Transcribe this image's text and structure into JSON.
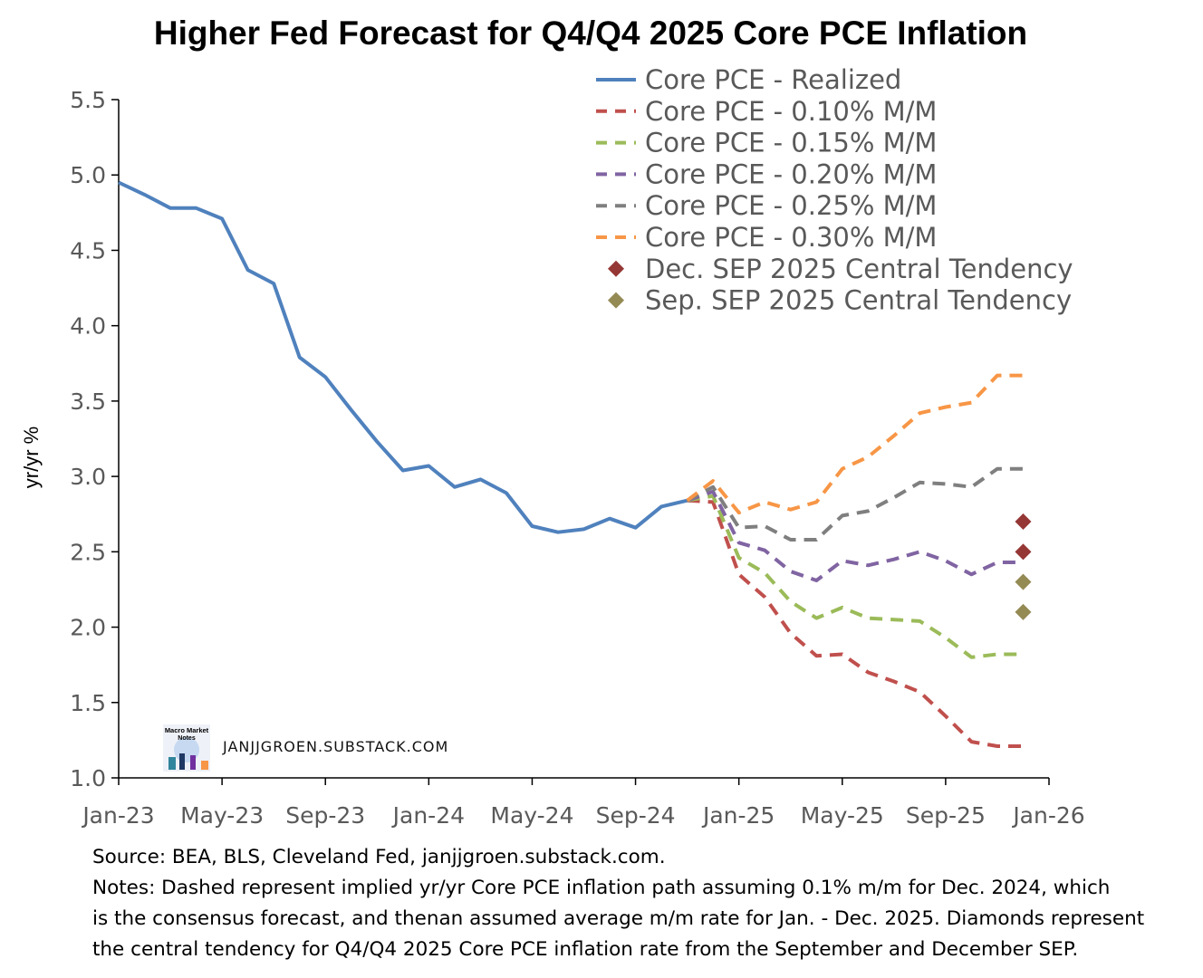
{
  "chart_data": {
    "type": "line",
    "title": "Higher Fed Forecast for Q4/Q4 2025 Core PCE Inflation",
    "ylabel": "yr/yr %",
    "xlabel": "",
    "ylim": [
      1.0,
      5.5
    ],
    "yticks": [
      "1.0",
      "1.5",
      "2.0",
      "2.5",
      "3.0",
      "3.5",
      "4.0",
      "4.5",
      "5.0",
      "5.5"
    ],
    "xticks": [
      "Jan-23",
      "May-23",
      "Sep-23",
      "Jan-24",
      "May-24",
      "Sep-24",
      "Jan-25",
      "May-25",
      "Sep-25",
      "Jan-26"
    ],
    "xrange": [
      "2023-01",
      "2026-01"
    ],
    "legend_position": "top-right",
    "grid": false,
    "series": [
      {
        "name": "Core PCE - Realized",
        "style": "solid",
        "color": "#4f81bd",
        "x": [
          "2023-01",
          "2023-02",
          "2023-03",
          "2023-04",
          "2023-05",
          "2023-06",
          "2023-07",
          "2023-08",
          "2023-09",
          "2023-10",
          "2023-11",
          "2023-12",
          "2024-01",
          "2024-02",
          "2024-03",
          "2024-04",
          "2024-05",
          "2024-06",
          "2024-07",
          "2024-08",
          "2024-09",
          "2024-10",
          "2024-11"
        ],
        "values": [
          4.95,
          4.87,
          4.78,
          4.78,
          4.71,
          4.37,
          4.28,
          3.79,
          3.66,
          3.44,
          3.23,
          3.04,
          3.07,
          2.93,
          2.98,
          2.89,
          2.67,
          2.63,
          2.65,
          2.72,
          2.66,
          2.8,
          2.84
        ]
      },
      {
        "name": "Core PCE - 0.10% M/M",
        "style": "dashed",
        "color": "#c0504d",
        "x": [
          "2024-11",
          "2024-12",
          "2025-01",
          "2025-02",
          "2025-03",
          "2025-04",
          "2025-05",
          "2025-06",
          "2025-07",
          "2025-08",
          "2025-09",
          "2025-10",
          "2025-11",
          "2025-12"
        ],
        "values": [
          2.84,
          2.83,
          2.35,
          2.2,
          1.96,
          1.81,
          1.82,
          1.7,
          1.64,
          1.57,
          1.41,
          1.24,
          1.21,
          1.21
        ]
      },
      {
        "name": "Core PCE - 0.15% M/M",
        "style": "dashed",
        "color": "#9bbb59",
        "x": [
          "2024-11",
          "2024-12",
          "2025-01",
          "2025-02",
          "2025-03",
          "2025-04",
          "2025-05",
          "2025-06",
          "2025-07",
          "2025-08",
          "2025-09",
          "2025-10",
          "2025-11",
          "2025-12"
        ],
        "values": [
          2.84,
          2.87,
          2.46,
          2.36,
          2.17,
          2.06,
          2.13,
          2.06,
          2.05,
          2.04,
          1.93,
          1.8,
          1.82,
          1.82
        ]
      },
      {
        "name": "Core PCE - 0.20% M/M",
        "style": "dashed",
        "color": "#8064a2",
        "x": [
          "2024-11",
          "2024-12",
          "2025-01",
          "2025-02",
          "2025-03",
          "2025-04",
          "2025-05",
          "2025-06",
          "2025-07",
          "2025-08",
          "2025-09",
          "2025-10",
          "2025-11",
          "2025-12"
        ],
        "values": [
          2.84,
          2.9,
          2.56,
          2.51,
          2.37,
          2.31,
          2.44,
          2.41,
          2.45,
          2.5,
          2.44,
          2.35,
          2.43,
          2.43
        ]
      },
      {
        "name": "Core PCE - 0.25% M/M",
        "style": "dashed",
        "color": "#7f7f7f",
        "x": [
          "2024-11",
          "2024-12",
          "2025-01",
          "2025-02",
          "2025-03",
          "2025-04",
          "2025-05",
          "2025-06",
          "2025-07",
          "2025-08",
          "2025-09",
          "2025-10",
          "2025-11",
          "2025-12"
        ],
        "values": [
          2.84,
          2.93,
          2.66,
          2.67,
          2.58,
          2.58,
          2.74,
          2.77,
          2.86,
          2.96,
          2.95,
          2.93,
          3.05,
          3.05
        ]
      },
      {
        "name": "Core PCE - 0.30% M/M",
        "style": "dashed",
        "color": "#f79646",
        "x": [
          "2024-11",
          "2024-12",
          "2025-01",
          "2025-02",
          "2025-03",
          "2025-04",
          "2025-05",
          "2025-06",
          "2025-07",
          "2025-08",
          "2025-09",
          "2025-10",
          "2025-11",
          "2025-12"
        ],
        "values": [
          2.84,
          2.97,
          2.76,
          2.83,
          2.78,
          2.83,
          3.05,
          3.13,
          3.27,
          3.42,
          3.46,
          3.49,
          3.67,
          3.67
        ]
      }
    ],
    "markers": [
      {
        "name": "Dec. SEP 2025 Central Tendency",
        "shape": "diamond",
        "color": "#953735",
        "x": "2025-12",
        "values": [
          2.7,
          2.5
        ]
      },
      {
        "name": "Sep. SEP 2025 Central Tendency",
        "shape": "diamond",
        "color": "#948a54",
        "x": "2025-12",
        "values": [
          2.3,
          2.1
        ]
      }
    ]
  },
  "watermark": {
    "logo_lines": [
      "Macro Market",
      "Notes"
    ],
    "text": "JANJJGROEN.SUBSTACK.COM"
  },
  "source": {
    "line1": "Source: BEA, BLS, Cleveland Fed, janjjgroen.substack.com.",
    "line2": "Notes: Dashed represent implied yr/yr Core PCE inflation path assuming 0.1% m/m for Dec. 2024, which",
    "line3": "is the consensus forecast, and thenan assumed average m/m rate for Jan. - Dec. 2025. Diamonds represent",
    "line4": "the central tendency for Q4/Q4 2025 Core PCE inflation rate from the September and December SEP."
  }
}
